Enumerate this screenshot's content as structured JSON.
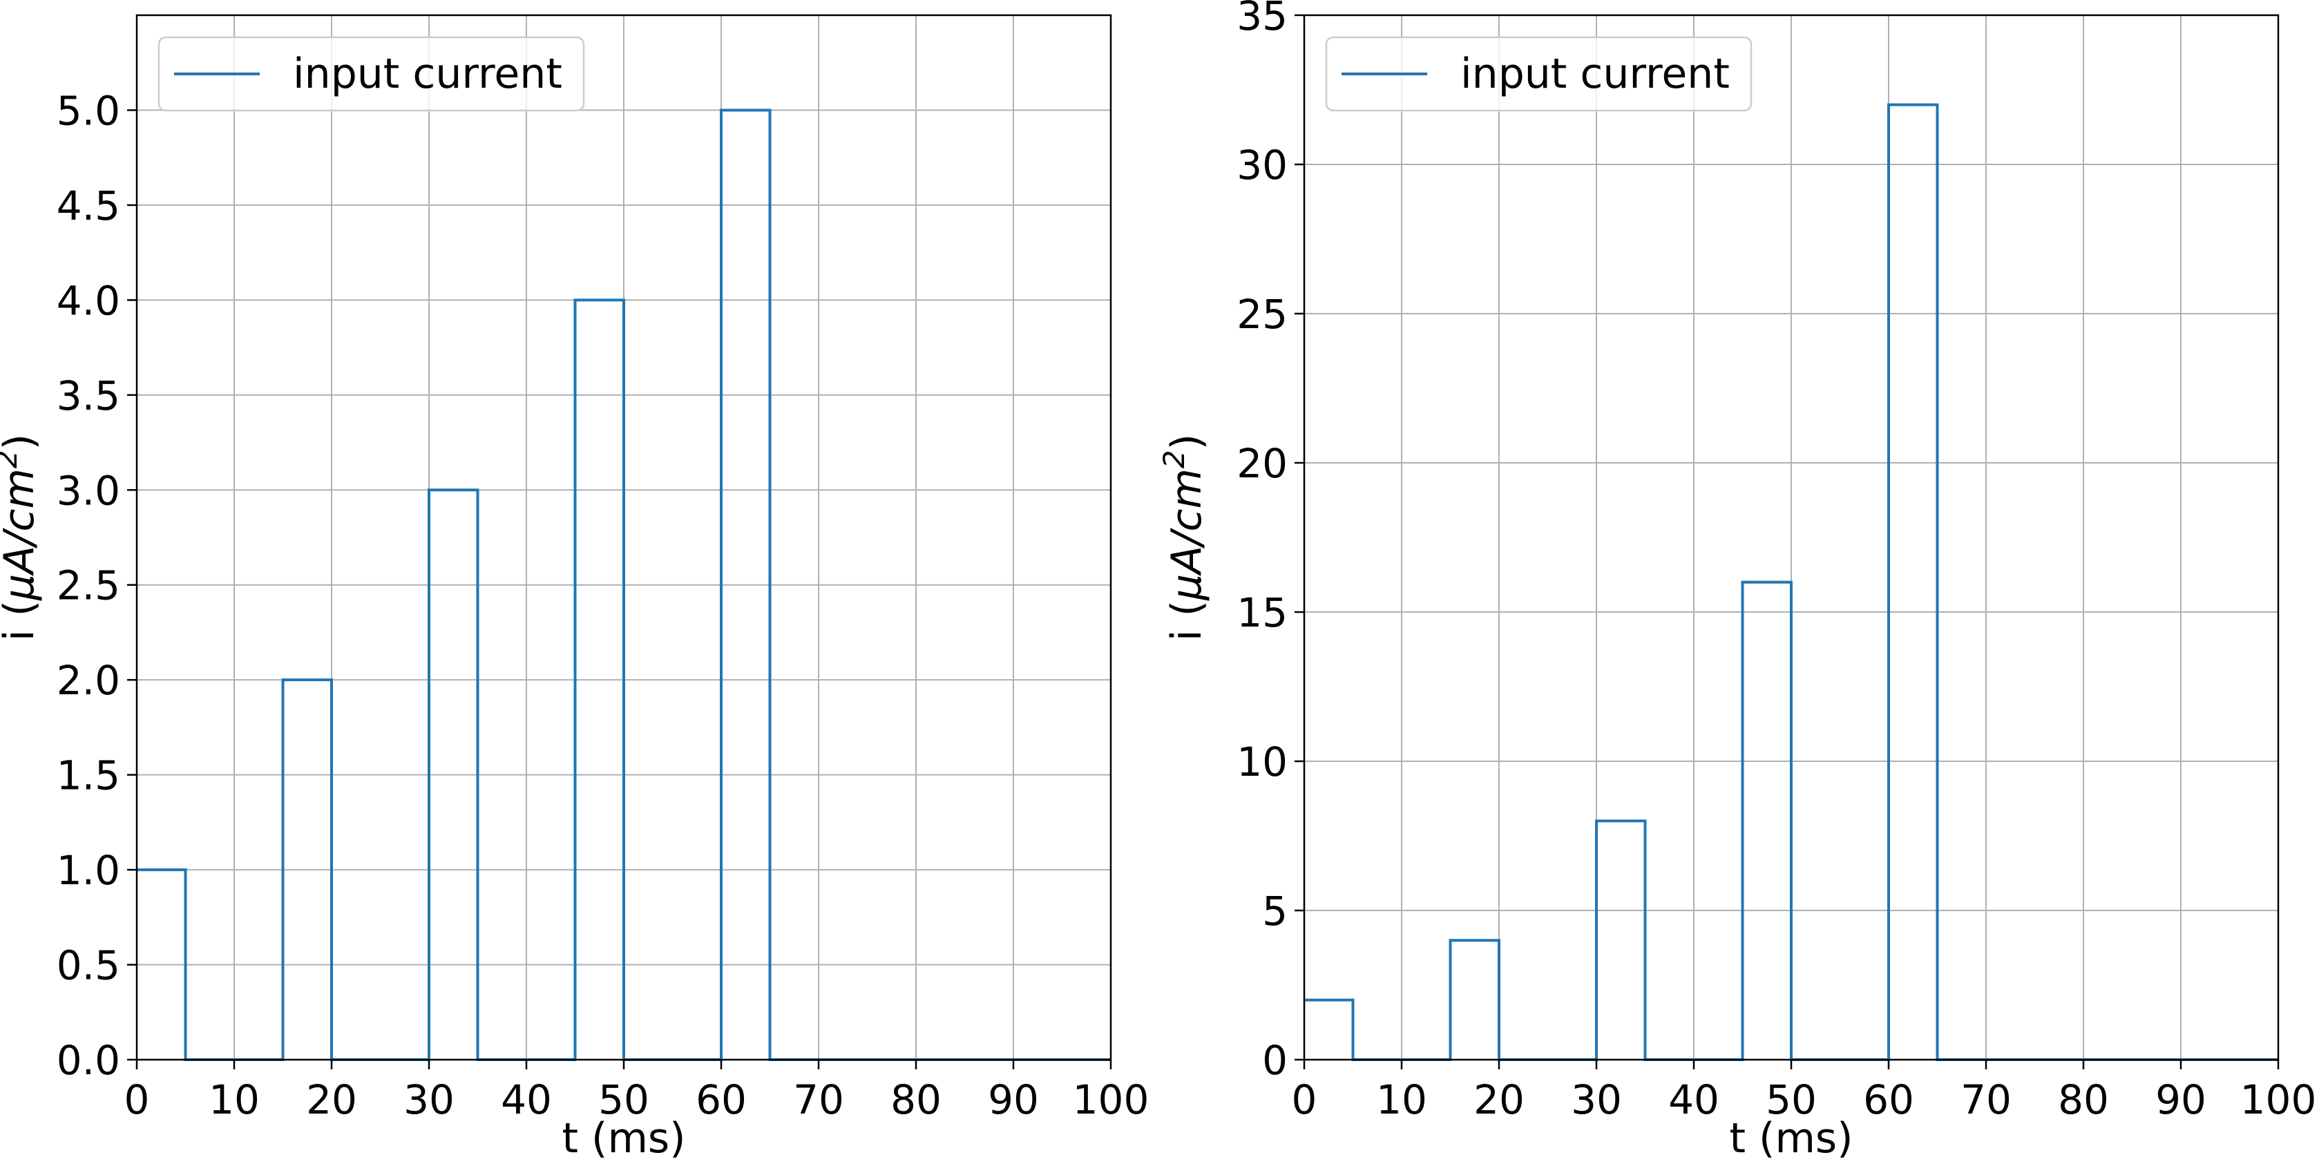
{
  "chart_data": [
    {
      "type": "line",
      "step": true,
      "x": [
        0,
        5,
        5,
        15,
        15,
        20,
        20,
        30,
        30,
        35,
        35,
        45,
        45,
        50,
        50,
        60,
        60,
        65,
        65,
        100
      ],
      "series": [
        {
          "name": "input current",
          "color": "#1f77b4",
          "values": [
            1,
            1,
            0,
            0,
            2,
            2,
            0,
            0,
            3,
            3,
            0,
            0,
            4,
            4,
            0,
            0,
            5,
            5,
            0,
            0
          ]
        }
      ],
      "xlabel": "t (ms)",
      "ylabel": {
        "prefix": "i (",
        "mu": "μ",
        "base": "A/cm",
        "sup": "2",
        "suffix": ")"
      },
      "xlim": [
        0,
        100
      ],
      "ylim": [
        0,
        5.5
      ],
      "xticks": [
        0,
        10,
        20,
        30,
        40,
        50,
        60,
        70,
        80,
        90,
        100
      ],
      "yticks": [
        0.0,
        0.5,
        1.0,
        1.5,
        2.0,
        2.5,
        3.0,
        3.5,
        4.0,
        4.5,
        5.0
      ],
      "ytick_decimals": 1,
      "grid": true,
      "legend": "top-left"
    },
    {
      "type": "line",
      "step": true,
      "x": [
        0,
        5,
        5,
        15,
        15,
        20,
        20,
        30,
        30,
        35,
        35,
        45,
        45,
        50,
        50,
        60,
        60,
        65,
        65,
        100
      ],
      "series": [
        {
          "name": "input current",
          "color": "#1f77b4",
          "values": [
            2,
            2,
            0,
            0,
            4,
            4,
            0,
            0,
            8,
            8,
            0,
            0,
            16,
            16,
            0,
            0,
            32,
            32,
            0,
            0
          ]
        }
      ],
      "xlabel": "t (ms)",
      "ylabel": {
        "prefix": "i (",
        "mu": "μ",
        "base": "A/cm",
        "sup": "2",
        "suffix": ")"
      },
      "xlim": [
        0,
        100
      ],
      "ylim": [
        0,
        35
      ],
      "xticks": [
        0,
        10,
        20,
        30,
        40,
        50,
        60,
        70,
        80,
        90,
        100
      ],
      "yticks": [
        0,
        5,
        10,
        15,
        20,
        25,
        30,
        35
      ],
      "ytick_decimals": 0,
      "grid": true,
      "legend": "top-left"
    }
  ]
}
